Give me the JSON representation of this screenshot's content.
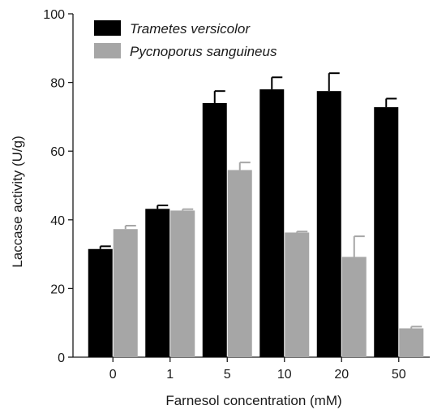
{
  "chart_data": {
    "type": "bar",
    "xlabel": "Farnesol concentration (mM)",
    "ylabel": "Laccase activity (U/g)",
    "categories": [
      "0",
      "1",
      "5",
      "10",
      "20",
      "50"
    ],
    "ylim": [
      0,
      100
    ],
    "yticks": [
      0,
      20,
      40,
      60,
      80,
      100
    ],
    "legend_position": "top-left",
    "grid": false,
    "series": [
      {
        "name": "Trametes versicolor",
        "color": "#000000",
        "values": [
          31.5,
          43.2,
          74.0,
          78.0,
          77.5,
          72.8
        ],
        "errors": [
          0.8,
          1.0,
          3.5,
          3.5,
          5.2,
          2.5
        ]
      },
      {
        "name": "Pycnoporus sanguineus",
        "color": "#a6a6a6",
        "values": [
          37.3,
          42.7,
          54.5,
          36.3,
          29.2,
          8.4
        ],
        "errors": [
          1.0,
          0.4,
          2.2,
          0.3,
          6.0,
          0.5
        ]
      }
    ]
  }
}
